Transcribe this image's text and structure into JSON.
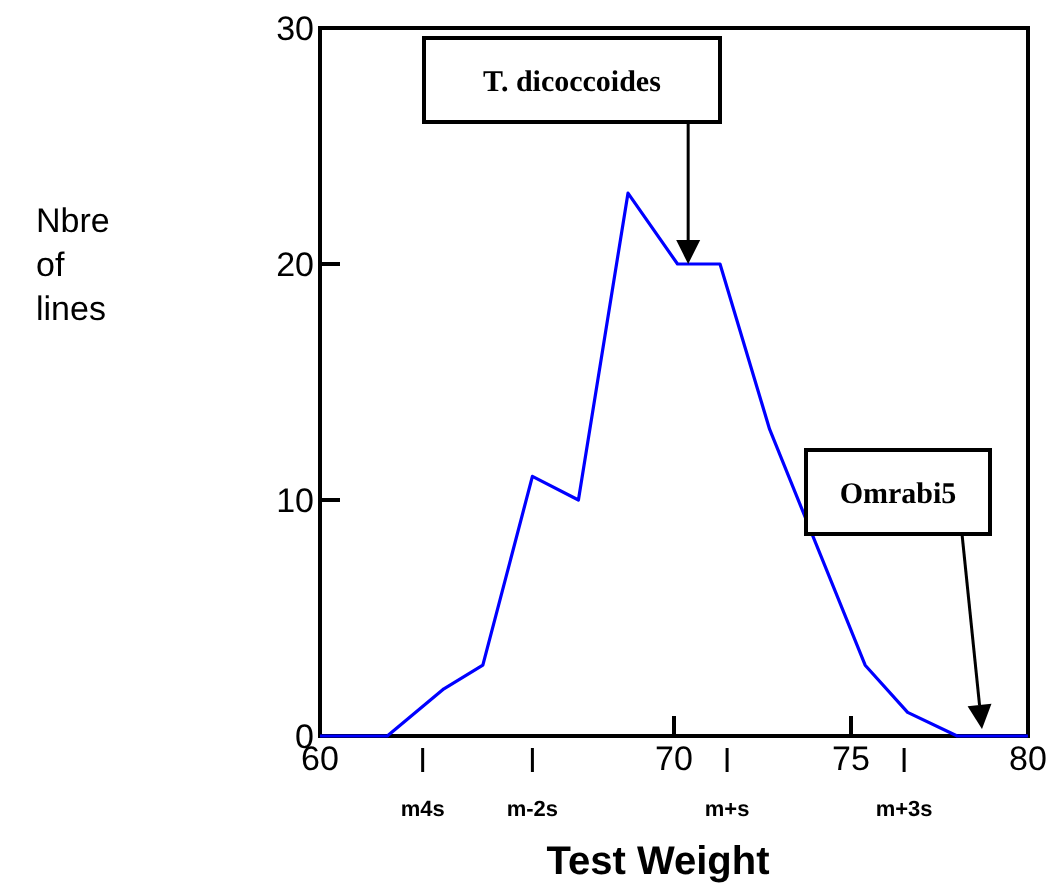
{
  "chart_data": {
    "type": "line",
    "xlabel": "Test Weight",
    "ylabel": "Nbre\nof\nlines",
    "x": [
      60,
      61.9,
      63.5,
      64.6,
      66.0,
      67.3,
      68.7,
      70.1,
      71.3,
      72.7,
      75.4,
      76.6,
      78.0,
      80
    ],
    "series": [
      {
        "color": "#0000ff",
        "values": [
          0,
          0,
          2,
          3,
          11,
          10,
          23,
          20,
          20,
          13,
          3,
          1,
          0,
          0
        ]
      }
    ],
    "xlim": [
      60,
      80
    ],
    "xticks": [
      60,
      {
        "value": 62.9,
        "label": null
      },
      {
        "value": 66.0,
        "label": null
      },
      70,
      {
        "value": 71.5,
        "label": null
      },
      75,
      {
        "value": 76.5,
        "label": null
      },
      80
    ],
    "ylim": [
      0,
      30
    ],
    "yticks": [
      0,
      10,
      20,
      30
    ],
    "grid": false,
    "marker": "none",
    "line_style": "solid",
    "annotations": [
      "T. dicoccoides",
      "Omrabi5",
      "m4s",
      "m-2s",
      "m+s",
      "m+3s"
    ]
  }
}
